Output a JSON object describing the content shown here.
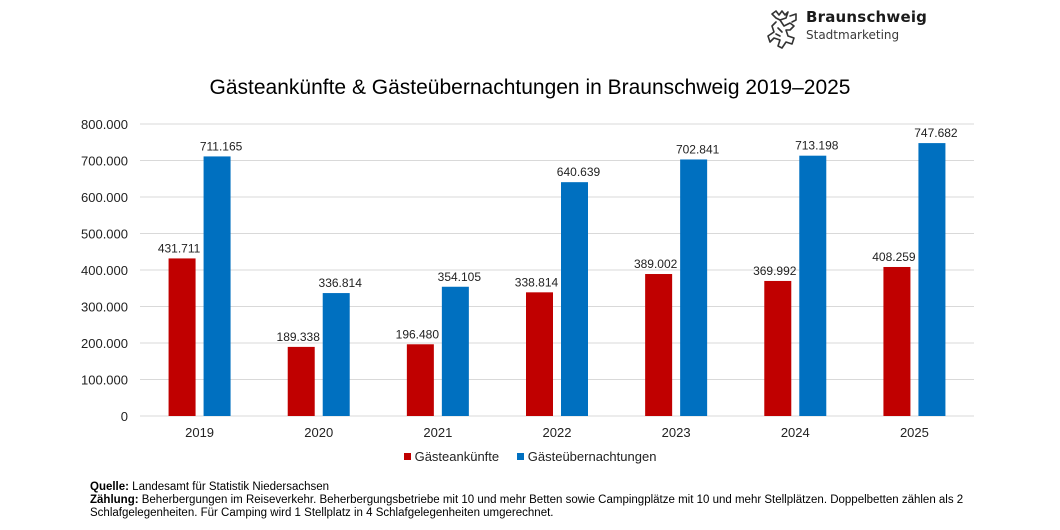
{
  "logo": {
    "title": "Braunschweig",
    "subtitle": "Stadtmarketing",
    "icon": "lion-icon"
  },
  "colors": {
    "series1": "#c00000",
    "series2": "#0070c0",
    "grid": "#d9d9d9"
  },
  "chart_data": {
    "type": "bar",
    "title": "Gästeankünfte & Gästeübernachtungen in Braunschweig 2019–2025",
    "xlabel": "",
    "ylabel": "",
    "categories": [
      "2019",
      "2020",
      "2021",
      "2022",
      "2023",
      "2024",
      "2025"
    ],
    "series": [
      {
        "name": "Gästeankünfte",
        "color": "#c00000",
        "values": [
          431711,
          189338,
          196480,
          338814,
          389002,
          369992,
          408259
        ],
        "labels": [
          "431.711",
          "189.338",
          "196.480",
          "338.814",
          "389.002",
          "369.992",
          "408.259"
        ]
      },
      {
        "name": "Gästeübernachtungen",
        "color": "#0070c0",
        "values": [
          711165,
          336814,
          354105,
          640639,
          702841,
          713198,
          747682
        ],
        "labels": [
          "711.165",
          "336.814",
          "354.105",
          "640.639",
          "702.841",
          "713.198",
          "747.682"
        ]
      }
    ],
    "ylim": [
      0,
      800000
    ],
    "yticks": [
      0,
      100000,
      200000,
      300000,
      400000,
      500000,
      600000,
      700000,
      800000
    ],
    "ytick_labels": [
      "0",
      "100.000",
      "200.000",
      "300.000",
      "400.000",
      "500.000",
      "600.000",
      "700.000",
      "800.000"
    ],
    "grid": true,
    "legend_position": "bottom"
  },
  "footer": {
    "source_label": "Quelle:",
    "source_text": " Landesamt für Statistik Niedersachsen",
    "count_label": "Zählung:",
    "count_text": " Beherbergungen im Reiseverkehr. Beherbergungsbetriebe mit 10 und mehr Betten sowie Campingplätze mit 10 und mehr Stellplätzen. Doppelbetten zählen als 2 Schlafgelegenheiten. Für Camping wird 1 Stellplatz in 4 Schlafgelegenheiten umgerechnet."
  }
}
